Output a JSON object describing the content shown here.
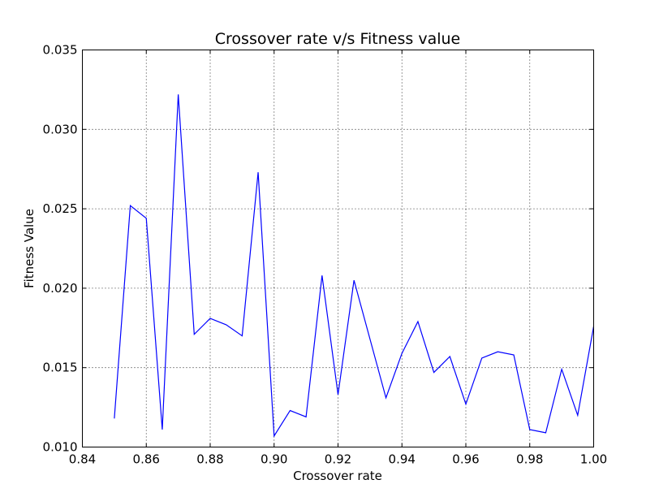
{
  "chart_data": {
    "type": "line",
    "title": "Crossover rate v/s Fitness value",
    "xlabel": "Crossover rate",
    "ylabel": "Fitness Value",
    "xlim": [
      0.84,
      1.0
    ],
    "ylim": [
      0.01,
      0.035
    ],
    "grid": true,
    "x_ticks": [
      "0.84",
      "0.86",
      "0.88",
      "0.90",
      "0.92",
      "0.94",
      "0.96",
      "0.98",
      "1.00"
    ],
    "y_ticks": [
      "0.010",
      "0.015",
      "0.020",
      "0.025",
      "0.030",
      "0.035"
    ],
    "series": [
      {
        "color": "#0000ff",
        "x": [
          0.85,
          0.855,
          0.86,
          0.865,
          0.87,
          0.875,
          0.88,
          0.885,
          0.89,
          0.895,
          0.9,
          0.905,
          0.91,
          0.915,
          0.92,
          0.925,
          0.93,
          0.935,
          0.94,
          0.945,
          0.95,
          0.955,
          0.96,
          0.965,
          0.97,
          0.975,
          0.98,
          0.985,
          0.99,
          0.995,
          1.0
        ],
        "y": [
          0.0118,
          0.0252,
          0.0244,
          0.0111,
          0.0322,
          0.0171,
          0.0181,
          0.0177,
          0.017,
          0.0273,
          0.0107,
          0.0123,
          0.0119,
          0.0208,
          0.0133,
          0.0205,
          0.0168,
          0.0131,
          0.0159,
          0.0179,
          0.0147,
          0.0157,
          0.0127,
          0.0156,
          0.016,
          0.0158,
          0.0111,
          0.0109,
          0.0149,
          0.012,
          0.0176
        ]
      }
    ]
  }
}
